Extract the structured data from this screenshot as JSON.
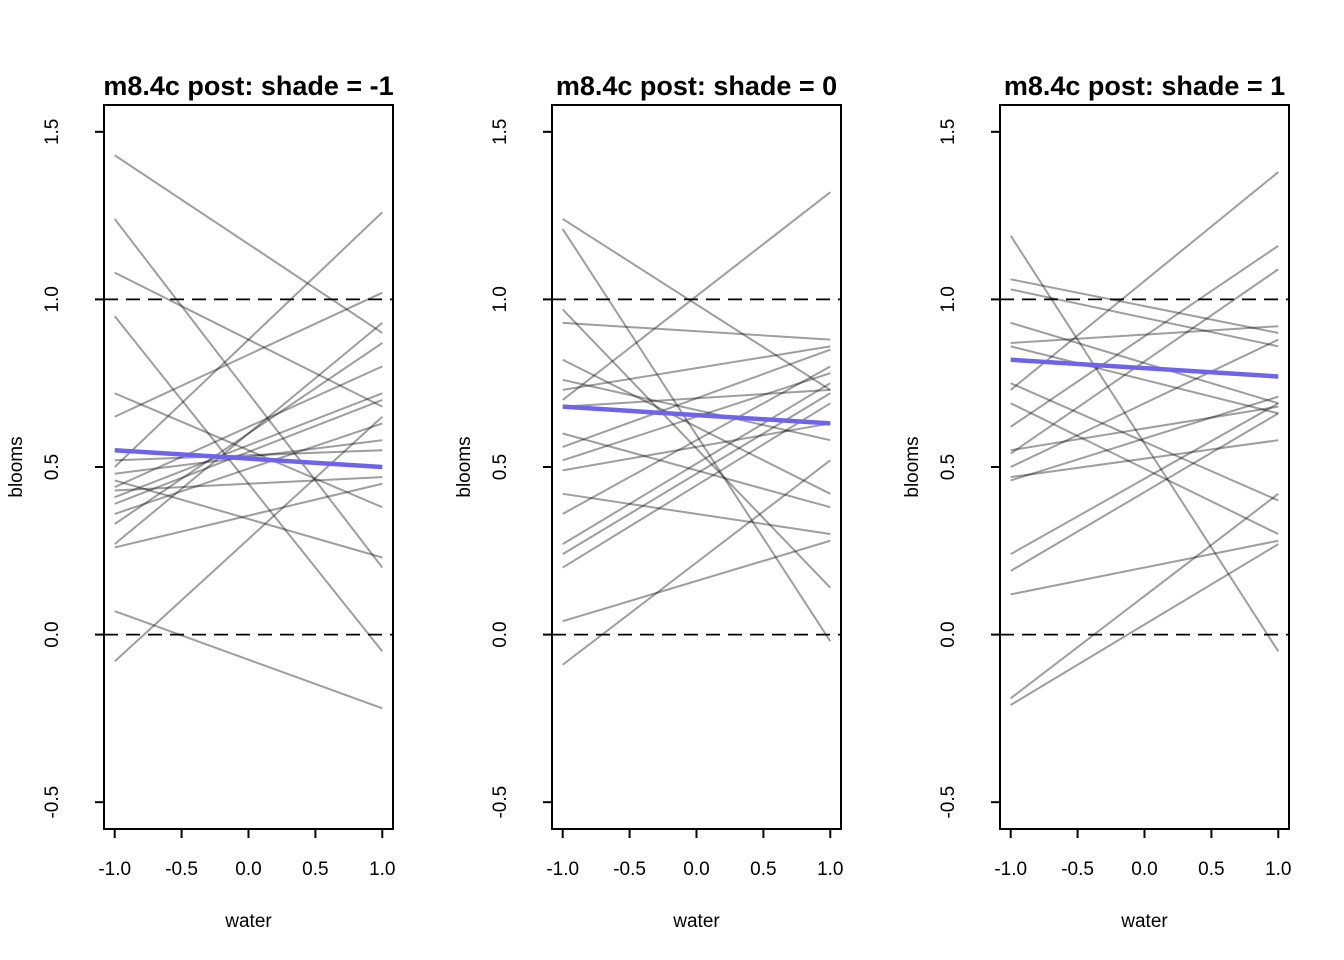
{
  "figure": {
    "background": "#ffffff",
    "colors": {
      "sample_line": "rgba(0,0,0,0.38)",
      "mean_line": "#6E64EB",
      "axis": "#000000",
      "dashed_reference": "#000000"
    }
  },
  "chart_data": [
    {
      "type": "line",
      "title": "m8.4c post: shade = -1",
      "xlabel": "water",
      "ylabel": "blooms",
      "xlim": [
        -1,
        1
      ],
      "ylim": [
        -0.5,
        1.5
      ],
      "grid": false,
      "legend": null,
      "x_tick_values": [
        -1,
        -0.5,
        0,
        0.5,
        1
      ],
      "x_tick_labels": [
        "-1.0",
        "-0.5",
        "0.0",
        "0.5",
        "1.0"
      ],
      "y_tick_values": [
        -0.5,
        0,
        0.5,
        1,
        1.5
      ],
      "y_tick_labels": [
        "-0.5",
        "0.0",
        "0.5",
        "1.0",
        "1.5"
      ],
      "dashed_hlines": [
        0,
        1
      ],
      "x_endpoints": [
        -1,
        1
      ],
      "posterior_samples": [
        [
          1.43,
          0.9
        ],
        [
          1.24,
          0.2
        ],
        [
          1.08,
          0.68
        ],
        [
          0.95,
          -0.05
        ],
        [
          0.72,
          0.38
        ],
        [
          0.65,
          1.02
        ],
        [
          0.52,
          0.55
        ],
        [
          0.5,
          1.26
        ],
        [
          0.48,
          0.58
        ],
        [
          0.46,
          0.23
        ],
        [
          0.44,
          0.8
        ],
        [
          0.43,
          0.47
        ],
        [
          0.41,
          0.72
        ],
        [
          0.39,
          0.7
        ],
        [
          0.36,
          0.63
        ],
        [
          0.33,
          0.87
        ],
        [
          0.27,
          0.93
        ],
        [
          0.26,
          0.45
        ],
        [
          0.07,
          -0.22
        ],
        [
          -0.08,
          0.65
        ]
      ],
      "mean_line": [
        0.55,
        0.5
      ]
    },
    {
      "type": "line",
      "title": "m8.4c post: shade = 0",
      "xlabel": "water",
      "ylabel": "blooms",
      "xlim": [
        -1,
        1
      ],
      "ylim": [
        -0.5,
        1.5
      ],
      "grid": false,
      "legend": null,
      "x_tick_values": [
        -1,
        -0.5,
        0,
        0.5,
        1
      ],
      "x_tick_labels": [
        "-1.0",
        "-0.5",
        "0.0",
        "0.5",
        "1.0"
      ],
      "y_tick_values": [
        -0.5,
        0,
        0.5,
        1,
        1.5
      ],
      "y_tick_labels": [
        "-0.5",
        "0.0",
        "0.5",
        "1.0",
        "1.5"
      ],
      "dashed_hlines": [
        0,
        1
      ],
      "x_endpoints": [
        -1,
        1
      ],
      "posterior_samples": [
        [
          1.24,
          0.73
        ],
        [
          1.21,
          -0.02
        ],
        [
          0.97,
          0.14
        ],
        [
          0.93,
          0.88
        ],
        [
          0.82,
          0.42
        ],
        [
          0.76,
          0.58
        ],
        [
          0.73,
          0.86
        ],
        [
          0.7,
          1.32
        ],
        [
          0.68,
          0.73
        ],
        [
          0.6,
          0.38
        ],
        [
          0.56,
          0.85
        ],
        [
          0.52,
          0.78
        ],
        [
          0.49,
          0.63
        ],
        [
          0.42,
          0.3
        ],
        [
          0.36,
          0.8
        ],
        [
          0.27,
          0.75
        ],
        [
          0.24,
          0.72
        ],
        [
          0.2,
          0.69
        ],
        [
          0.04,
          0.28
        ],
        [
          -0.09,
          0.52
        ]
      ],
      "mean_line": [
        0.68,
        0.63
      ]
    },
    {
      "type": "line",
      "title": "m8.4c post: shade = 1",
      "xlabel": "water",
      "ylabel": "blooms",
      "xlim": [
        -1,
        1
      ],
      "ylim": [
        -0.5,
        1.5
      ],
      "grid": false,
      "legend": null,
      "x_tick_values": [
        -1,
        -0.5,
        0,
        0.5,
        1
      ],
      "x_tick_labels": [
        "-1.0",
        "-0.5",
        "0.0",
        "0.5",
        "1.0"
      ],
      "y_tick_values": [
        -0.5,
        0,
        0.5,
        1,
        1.5
      ],
      "y_tick_labels": [
        "-0.5",
        "0.0",
        "0.5",
        "1.0",
        "1.5"
      ],
      "dashed_hlines": [
        0,
        1
      ],
      "x_endpoints": [
        -1,
        1
      ],
      "posterior_samples": [
        [
          1.19,
          -0.05
        ],
        [
          1.06,
          0.9
        ],
        [
          1.03,
          0.86
        ],
        [
          0.93,
          0.69
        ],
        [
          0.87,
          0.92
        ],
        [
          0.86,
          0.66
        ],
        [
          0.75,
          0.4
        ],
        [
          0.73,
          1.38
        ],
        [
          0.69,
          0.3
        ],
        [
          0.62,
          1.16
        ],
        [
          0.55,
          0.68
        ],
        [
          0.54,
          1.09
        ],
        [
          0.5,
          0.88
        ],
        [
          0.47,
          0.58
        ],
        [
          0.46,
          0.71
        ],
        [
          0.24,
          0.69
        ],
        [
          0.19,
          0.66
        ],
        [
          0.12,
          0.28
        ],
        [
          -0.19,
          0.42
        ],
        [
          -0.21,
          0.27
        ]
      ],
      "mean_line": [
        0.82,
        0.77
      ]
    }
  ]
}
